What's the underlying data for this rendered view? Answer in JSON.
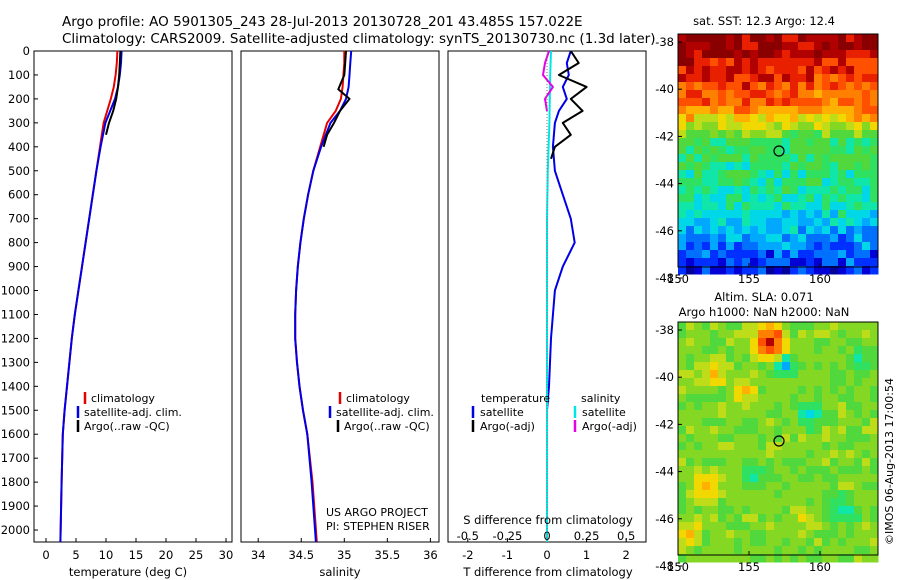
{
  "header": {
    "line1": "Argo profile: AO 5901305_243 28-Jul-2013 20130728_201 43.485S 157.022E",
    "line2": "Climatology: CARS2009. Satellite-adjusted climatology: synTS_20130730.nc (1.3d later)"
  },
  "colors": {
    "climatology": "#e60000",
    "satellite": "#0000e6",
    "argo": "#000000",
    "sal_satellite": "#00e6e6",
    "sal_argo": "#e600e6"
  },
  "depth_axis": {
    "ticks": [
      "0",
      "100",
      "200",
      "300",
      "400",
      "500",
      "600",
      "700",
      "800",
      "900",
      "1000",
      "1100",
      "1200",
      "1300",
      "1400",
      "1500",
      "1600",
      "1700",
      "1800",
      "1900",
      "2000"
    ]
  },
  "temperature_panel": {
    "xlabel": "temperature (deg C)",
    "xticks": [
      "0",
      "5",
      "10",
      "15",
      "20",
      "25",
      "30"
    ],
    "legend": [
      "climatology",
      "satellite-adj. clim.",
      "Argo(..raw -QC)"
    ]
  },
  "salinity_panel": {
    "xlabel": "salinity",
    "xticks": [
      "34",
      "34.5",
      "35",
      "35.5",
      "36"
    ],
    "legend": [
      "climatology",
      "satellite-adj. clim.",
      "Argo(..raw -QC)"
    ],
    "credit1": "US ARGO PROJECT",
    "credit2": "PI: STEPHEN RISER"
  },
  "difference_panel": {
    "xlabel": "T difference from climatology",
    "top_label": "S difference from climatology",
    "xticks": [
      "-2",
      "-1",
      "0",
      "1",
      "2"
    ],
    "top_ticks": [
      "-0.5",
      "-0.25",
      "0",
      "0.25",
      "0.5"
    ],
    "legend_temp_title": "temperature",
    "legend_sal_title": "salinity",
    "legend_temp": [
      "satellite",
      "Argo(-adj)"
    ],
    "legend_sal": [
      "satellite",
      "Argo(-adj)"
    ]
  },
  "sst_map": {
    "title": "sat. SST: 12.3 Argo: 12.4",
    "yticks": [
      "-38",
      "-40",
      "-42",
      "-44",
      "-46",
      "-48"
    ],
    "xticks": [
      "150",
      "155",
      "160"
    ]
  },
  "sla_map": {
    "title1": "Altim. SLA: 0.071",
    "title2": "Argo h1000: NaN h2000: NaN",
    "yticks": [
      "-38",
      "-40",
      "-42",
      "-44",
      "-46",
      "-48"
    ],
    "xticks": [
      "150",
      "155",
      "160"
    ]
  },
  "side_label": "©IMOS 06-Aug-2013 17:00:54",
  "chart_data": [
    {
      "type": "line",
      "title": "",
      "xlabel": "temperature (deg C)",
      "ylabel": "",
      "xlim": [
        -2,
        31
      ],
      "ylim": [
        2050,
        0
      ],
      "y_reversed": true,
      "series": [
        {
          "name": "climatology",
          "color": "#e60000",
          "x": [
            11.9,
            11.8,
            11.6,
            11.3,
            10.8,
            10.2,
            9.6,
            9.0,
            8.4,
            7.8,
            7.2,
            6.6,
            6.0,
            5.4,
            4.8,
            4.3,
            3.9,
            3.5,
            3.1,
            2.8,
            2.6,
            2.4
          ],
          "y": [
            0,
            50,
            100,
            150,
            200,
            250,
            300,
            400,
            500,
            600,
            700,
            800,
            900,
            1000,
            1100,
            1200,
            1300,
            1400,
            1500,
            1600,
            1800,
            2050
          ]
        },
        {
          "name": "satellite-adj. clim.",
          "color": "#0000e6",
          "x": [
            12.6,
            12.5,
            12.3,
            12.0,
            11.5,
            10.7,
            9.9,
            9.1,
            8.4,
            7.8,
            7.2,
            6.6,
            6.0,
            5.4,
            4.8,
            4.3,
            3.9,
            3.5,
            3.1,
            2.8,
            2.6,
            2.4
          ],
          "y": [
            0,
            50,
            100,
            150,
            200,
            250,
            300,
            400,
            500,
            600,
            700,
            800,
            900,
            1000,
            1100,
            1200,
            1300,
            1400,
            1500,
            1600,
            1800,
            2050
          ]
        },
        {
          "name": "Argo(..raw -QC)",
          "color": "#000000",
          "x": [
            12.4,
            12.3,
            12.2,
            12.0,
            11.7,
            11.2,
            10.5,
            10.0
          ],
          "y": [
            0,
            50,
            100,
            150,
            200,
            250,
            300,
            350
          ]
        }
      ]
    },
    {
      "type": "line",
      "title": "",
      "xlabel": "salinity",
      "ylabel": "",
      "xlim": [
        33.8,
        36.1
      ],
      "ylim": [
        2050,
        0
      ],
      "y_reversed": true,
      "series": [
        {
          "name": "climatology",
          "color": "#e60000",
          "x": [
            35.0,
            35.0,
            34.99,
            34.98,
            34.96,
            34.9,
            34.8,
            34.72,
            34.64,
            34.58,
            34.53,
            34.49,
            34.46,
            34.44,
            34.43,
            34.43,
            34.45,
            34.48,
            34.52,
            34.57,
            34.63,
            34.68
          ],
          "y": [
            0,
            50,
            100,
            150,
            200,
            250,
            300,
            400,
            500,
            600,
            700,
            800,
            900,
            1000,
            1100,
            1200,
            1300,
            1400,
            1500,
            1600,
            1800,
            2050
          ]
        },
        {
          "name": "satellite-adj. clim.",
          "color": "#0000e6",
          "x": [
            35.08,
            35.07,
            35.06,
            35.05,
            35.02,
            34.95,
            34.84,
            34.73,
            34.64,
            34.58,
            34.53,
            34.49,
            34.46,
            34.44,
            34.43,
            34.43,
            34.45,
            34.48,
            34.52,
            34.57,
            34.62,
            34.67
          ],
          "y": [
            0,
            50,
            100,
            150,
            200,
            250,
            300,
            400,
            500,
            600,
            700,
            800,
            900,
            1000,
            1100,
            1200,
            1300,
            1400,
            1500,
            1600,
            1800,
            2050
          ]
        },
        {
          "name": "Argo(..raw -QC)",
          "color": "#000000",
          "x": [
            35.02,
            35.01,
            35.0,
            34.93,
            35.06,
            34.95,
            34.88,
            34.8,
            34.76
          ],
          "y": [
            0,
            50,
            100,
            160,
            200,
            250,
            300,
            350,
            400
          ]
        }
      ]
    },
    {
      "type": "line",
      "title": "",
      "xlabel": "T difference from climatology",
      "x2label": "S difference from climatology",
      "xlim": [
        -2.5,
        2.5
      ],
      "x2lim": [
        -0.625,
        0.625
      ],
      "ylim": [
        2050,
        0
      ],
      "y_reversed": true,
      "series": [
        {
          "name": "temperature satellite",
          "color": "#0000e6",
          "x": [
            0.6,
            0.5,
            0.55,
            0.4,
            0.5,
            0.3,
            0.2,
            0.15,
            0.2,
            0.4,
            0.6,
            0.7,
            0.4,
            0.2,
            0.1,
            0.05,
            0.0,
            0.0,
            0.0,
            0.0,
            0.0
          ],
          "y": [
            0,
            50,
            100,
            150,
            200,
            250,
            300,
            400,
            500,
            600,
            700,
            800,
            900,
            1000,
            1200,
            1400,
            1500,
            1600,
            1700,
            1800,
            2050
          ]
        },
        {
          "name": "temperature Argo(-adj)",
          "color": "#000000",
          "x": [
            0.6,
            0.8,
            0.3,
            1.0,
            0.6,
            0.9,
            0.4,
            0.6,
            0.2,
            0.1
          ],
          "y": [
            0,
            50,
            100,
            150,
            200,
            250,
            300,
            350,
            400,
            450
          ]
        },
        {
          "name": "salinity satellite",
          "color": "#00e6e6",
          "x": [
            0.1,
            0.08,
            0.07,
            0.06,
            0.04,
            0.02,
            0.0,
            0.0,
            0.0,
            0.0,
            0.0,
            0.0
          ],
          "y": [
            0,
            100,
            200,
            300,
            400,
            500,
            700,
            900,
            1200,
            1500,
            1800,
            2050
          ]
        },
        {
          "name": "salinity Argo(-adj)",
          "color": "#e600e6",
          "x": [
            0.05,
            -0.05,
            -0.1,
            0.15,
            -0.05,
            0.0
          ],
          "y": [
            0,
            50,
            100,
            150,
            200,
            250
          ]
        }
      ]
    }
  ]
}
